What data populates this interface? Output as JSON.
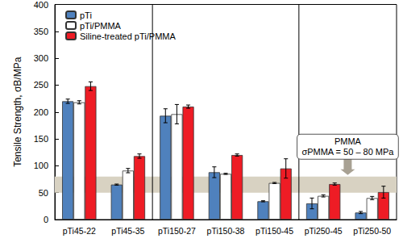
{
  "chart_data": {
    "type": "bar",
    "y_label": "Tensile Strength, σB/MPa",
    "categories": [
      "pTi45-22",
      "pTi45-35",
      "pTi150-27",
      "pTi150-38",
      "pTi150-45",
      "pTi250-45",
      "pTi250-50"
    ],
    "series": [
      {
        "name": "pTi",
        "color": "#4f81bd",
        "values": [
          220,
          65,
          193,
          88,
          34,
          30,
          13
        ],
        "errors": [
          4,
          1,
          13,
          10,
          1,
          10,
          2
        ]
      },
      {
        "name": "pTi/PMMA",
        "color": "#ffffff",
        "values": [
          218,
          91,
          196,
          85,
          68,
          44,
          40
        ],
        "errors": [
          3,
          4,
          18,
          1,
          1,
          2,
          3
        ]
      },
      {
        "name": "Siline-treated pTi/PMMA",
        "color": "#ee1c25",
        "values": [
          248,
          118,
          210,
          120,
          95,
          66,
          51
        ],
        "errors": [
          8,
          4,
          3,
          2,
          18,
          2,
          11
        ]
      }
    ],
    "band": {
      "from": 50,
      "to": 80,
      "color": "#d8d2c2"
    },
    "annotation": [
      "PMMA",
      "σPMMA = 50 – 80 MPa"
    ],
    "ylim": [
      0,
      400
    ],
    "yticks": [
      0,
      50,
      100,
      150,
      200,
      250,
      300,
      350,
      400
    ],
    "grid": false,
    "legend": "top-left"
  }
}
